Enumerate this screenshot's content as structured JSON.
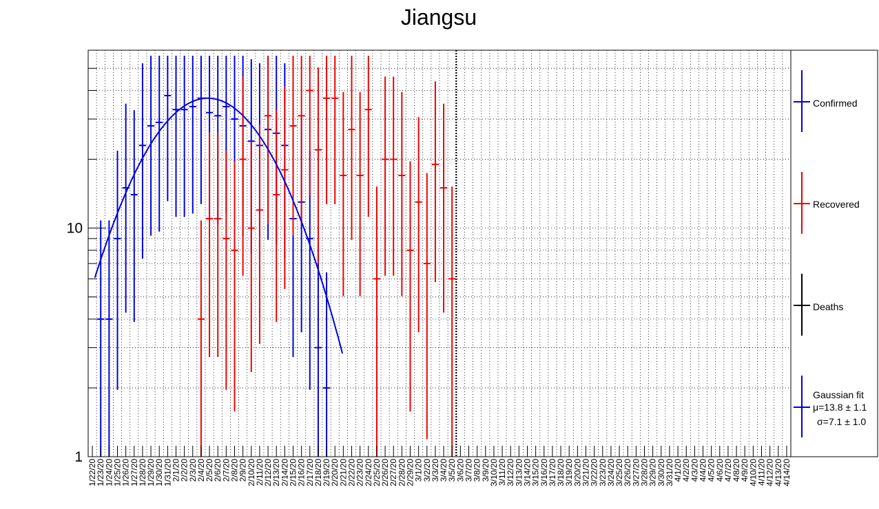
{
  "chart_data": {
    "type": "scatter",
    "title": "Jiangsu",
    "xlabel": "",
    "ylabel": "",
    "y_scale": "log",
    "ylim": [
      1,
      60
    ],
    "y_tick_labels": [
      "1",
      "10"
    ],
    "grid": true,
    "legend_position": "right",
    "dates": [
      "1/22/20",
      "1/23/20",
      "1/24/20",
      "1/25/20",
      "1/26/20",
      "1/27/20",
      "1/28/20",
      "1/29/20",
      "1/30/20",
      "1/31/20",
      "2/1/20",
      "2/2/20",
      "2/3/20",
      "2/4/20",
      "2/5/20",
      "2/6/20",
      "2/7/20",
      "2/8/20",
      "2/9/20",
      "2/10/20",
      "2/11/20",
      "2/12/20",
      "2/13/20",
      "2/14/20",
      "2/15/20",
      "2/16/20",
      "2/17/20",
      "2/18/20",
      "2/19/20",
      "2/20/20",
      "2/21/20",
      "2/22/20",
      "2/23/20",
      "2/24/20",
      "2/25/20",
      "2/26/20",
      "2/27/20",
      "2/28/20",
      "2/29/20",
      "3/1/20",
      "3/2/20",
      "3/3/20",
      "3/4/20",
      "3/5/20",
      "3/6/20",
      "3/7/20",
      "3/8/20",
      "3/9/20",
      "3/10/20",
      "3/11/20",
      "3/12/20",
      "3/13/20",
      "3/14/20",
      "3/15/20",
      "3/16/20",
      "3/17/20",
      "3/18/20",
      "3/19/20",
      "3/20/20",
      "3/21/20",
      "3/22/20",
      "3/23/20",
      "3/24/20",
      "3/25/20",
      "3/26/20",
      "3/27/20",
      "3/28/20",
      "3/29/20",
      "3/30/20",
      "3/31/20",
      "4/1/20",
      "4/2/20",
      "4/3/20",
      "4/4/20",
      "4/5/20",
      "4/6/20",
      "4/7/20",
      "4/8/20",
      "4/9/20",
      "4/10/20",
      "4/11/20",
      "4/12/20",
      "4/13/20",
      "4/14/20"
    ],
    "vertical_marker_date": "3/5/20",
    "series": [
      {
        "name": "Confirmed",
        "color": "#0000dd",
        "points": [
          {
            "date": "1/23/20",
            "y": 4
          },
          {
            "date": "1/24/20",
            "y": 4
          },
          {
            "date": "1/25/20",
            "y": 9
          },
          {
            "date": "1/26/20",
            "y": 15
          },
          {
            "date": "1/27/20",
            "y": 14
          },
          {
            "date": "1/28/20",
            "y": 23
          },
          {
            "date": "1/29/20",
            "y": 28
          },
          {
            "date": "1/30/20",
            "y": 29
          },
          {
            "date": "1/31/20",
            "y": 38
          },
          {
            "date": "2/1/20",
            "y": 33
          },
          {
            "date": "2/2/20",
            "y": 33
          },
          {
            "date": "2/3/20",
            "y": 34
          },
          {
            "date": "2/4/20",
            "y": 37
          },
          {
            "date": "2/5/20",
            "y": 32
          },
          {
            "date": "2/6/20",
            "y": 31
          },
          {
            "date": "2/7/20",
            "y": 34
          },
          {
            "date": "2/8/20",
            "y": 30
          },
          {
            "date": "2/9/20",
            "y": 28
          },
          {
            "date": "2/10/20",
            "y": 24
          },
          {
            "date": "2/11/20",
            "y": 23
          },
          {
            "date": "2/12/20",
            "y": 27
          },
          {
            "date": "2/13/20",
            "y": 26
          },
          {
            "date": "2/14/20",
            "y": 23
          },
          {
            "date": "2/15/20",
            "y": 11
          },
          {
            "date": "2/16/20",
            "y": 13
          },
          {
            "date": "2/17/20",
            "y": 9
          },
          {
            "date": "2/18/20",
            "y": 3
          },
          {
            "date": "2/19/20",
            "y": 2
          }
        ]
      },
      {
        "name": "Recovered",
        "color": "#ee0000",
        "points": [
          {
            "date": "2/4/20",
            "y": 4
          },
          {
            "date": "2/5/20",
            "y": 11
          },
          {
            "date": "2/6/20",
            "y": 11
          },
          {
            "date": "2/7/20",
            "y": 9
          },
          {
            "date": "2/8/20",
            "y": 8
          },
          {
            "date": "2/9/20",
            "y": 20
          },
          {
            "date": "2/10/20",
            "y": 10
          },
          {
            "date": "2/11/20",
            "y": 12
          },
          {
            "date": "2/12/20",
            "y": 31
          },
          {
            "date": "2/13/20",
            "y": 14
          },
          {
            "date": "2/14/20",
            "y": 18
          },
          {
            "date": "2/15/20",
            "y": 28
          },
          {
            "date": "2/16/20",
            "y": 31
          },
          {
            "date": "2/17/20",
            "y": 40
          },
          {
            "date": "2/18/20",
            "y": 22
          },
          {
            "date": "2/19/20",
            "y": 37
          },
          {
            "date": "2/20/20",
            "y": 37
          },
          {
            "date": "2/21/20",
            "y": 17
          },
          {
            "date": "2/22/20",
            "y": 27
          },
          {
            "date": "2/23/20",
            "y": 17
          },
          {
            "date": "2/24/20",
            "y": 33
          },
          {
            "date": "2/25/20",
            "y": 6
          },
          {
            "date": "2/26/20",
            "y": 20
          },
          {
            "date": "2/27/20",
            "y": 20
          },
          {
            "date": "2/28/20",
            "y": 17
          },
          {
            "date": "2/29/20",
            "y": 8
          },
          {
            "date": "3/1/20",
            "y": 13
          },
          {
            "date": "3/2/20",
            "y": 7
          },
          {
            "date": "3/3/20",
            "y": 19
          },
          {
            "date": "3/4/20",
            "y": 15
          },
          {
            "date": "3/5/20",
            "y": 6
          }
        ]
      },
      {
        "name": "Deaths",
        "color": "#000000",
        "points": []
      }
    ],
    "fit": {
      "name": "Gaussian fit",
      "color": "#0000dd",
      "mu_label": "μ=13.8  ± 1.1",
      "sigma_label": "σ=7.1 ± 1.0",
      "mu": 13.8,
      "sigma": 7.1,
      "amplitude": 37
    }
  }
}
